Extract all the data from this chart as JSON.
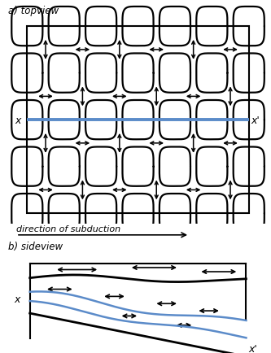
{
  "fig_width": 3.33,
  "fig_height": 4.35,
  "dpi": 100,
  "bg_color": "#ffffff",
  "label_a": "a) topview",
  "label_b": "b) sideview",
  "arrow_label": "direction of subduction",
  "blue_line_color": "#5b8bc9",
  "topview_rows": 4,
  "topview_cols": 6
}
